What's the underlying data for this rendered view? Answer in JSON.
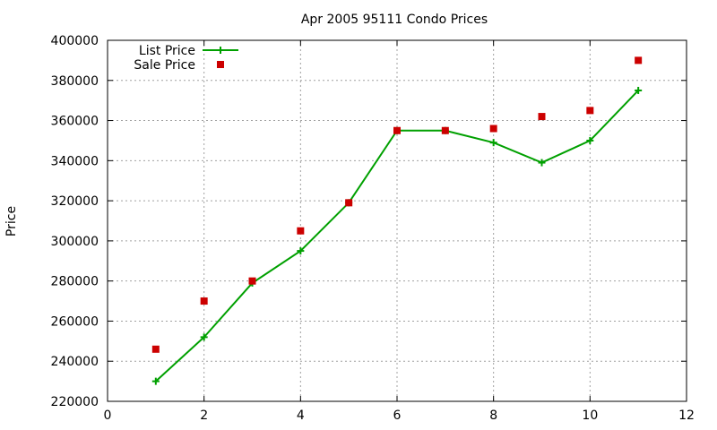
{
  "chart_data": {
    "type": "line",
    "title": "Apr 2005 95111 Condo Prices",
    "xlabel": "",
    "ylabel": "Price",
    "xlim": [
      0,
      12
    ],
    "ylim": [
      220000,
      400000
    ],
    "x_ticks": [
      0,
      2,
      4,
      6,
      8,
      10,
      12
    ],
    "y_ticks": [
      220000,
      240000,
      260000,
      280000,
      300000,
      320000,
      340000,
      360000,
      380000,
      400000
    ],
    "grid": true,
    "legend_position": "top-left",
    "series": [
      {
        "name": "List Price",
        "style": "line-with-plus-markers",
        "color": "#00a000",
        "x": [
          1,
          2,
          3,
          4,
          5,
          6,
          7,
          8,
          9,
          10,
          11
        ],
        "values": [
          230000,
          252000,
          279000,
          295000,
          319000,
          355000,
          355000,
          349000,
          339000,
          350000,
          375000
        ]
      },
      {
        "name": "Sale Price",
        "style": "square-markers",
        "color": "#cc0000",
        "x": [
          1,
          2,
          3,
          4,
          5,
          6,
          7,
          8,
          9,
          10,
          11
        ],
        "values": [
          246000,
          270000,
          280000,
          305000,
          319000,
          355000,
          355000,
          356000,
          362000,
          365000,
          390000
        ]
      }
    ]
  }
}
